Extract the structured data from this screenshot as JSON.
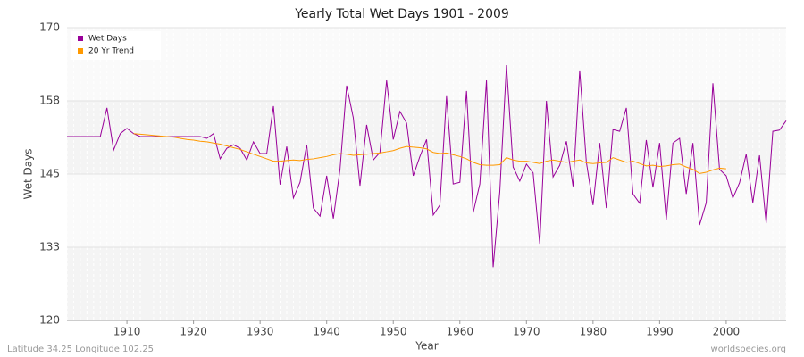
{
  "chart_data": {
    "type": "line",
    "title": "Yearly Total Wet Days 1901 - 2009",
    "x_label": "Year",
    "y_label": "Wet Days",
    "footer_left": "Latitude 34.25 Longitude 102.25",
    "footer_right": "worldspecies.org",
    "x": [
      1901,
      1902,
      1903,
      1904,
      1905,
      1906,
      1907,
      1908,
      1909,
      1910,
      1911,
      1912,
      1913,
      1914,
      1915,
      1916,
      1917,
      1918,
      1919,
      1920,
      1921,
      1922,
      1923,
      1924,
      1925,
      1926,
      1927,
      1928,
      1929,
      1930,
      1931,
      1932,
      1933,
      1934,
      1935,
      1936,
      1937,
      1938,
      1939,
      1940,
      1941,
      1942,
      1943,
      1944,
      1945,
      1946,
      1947,
      1948,
      1949,
      1950,
      1951,
      1952,
      1953,
      1954,
      1955,
      1956,
      1957,
      1958,
      1959,
      1960,
      1961,
      1962,
      1963,
      1964,
      1965,
      1966,
      1967,
      1968,
      1969,
      1970,
      1971,
      1972,
      1973,
      1974,
      1975,
      1976,
      1977,
      1978,
      1979,
      1980,
      1981,
      1982,
      1983,
      1984,
      1985,
      1986,
      1987,
      1988,
      1989,
      1990,
      1991,
      1992,
      1993,
      1994,
      1995,
      1996,
      1997,
      1998,
      1999,
      2000,
      2001,
      2002,
      2003,
      2004,
      2005,
      2006,
      2007,
      2008,
      2009
    ],
    "series": [
      {
        "name": "Wet Days",
        "color": "#990099",
        "values": [
          151.4,
          151.4,
          151.4,
          151.4,
          151.4,
          151.4,
          156.3,
          149.1,
          151.9,
          152.8,
          151.9,
          151.4,
          151.4,
          151.4,
          151.4,
          151.4,
          151.4,
          151.4,
          151.4,
          151.4,
          151.4,
          151.1,
          151.9,
          147.6,
          149.4,
          150.0,
          149.4,
          147.4,
          150.5,
          148.5,
          148.5,
          156.6,
          143.2,
          149.7,
          140.9,
          143.6,
          150.0,
          139.2,
          137.8,
          144.7,
          137.4,
          145.8,
          160.1,
          154.6,
          143.0,
          153.4,
          147.4,
          148.7,
          161.0,
          150.9,
          155.7,
          153.7,
          144.7,
          148.0,
          150.9,
          138.0,
          139.7,
          158.3,
          143.3,
          143.6,
          159.2,
          138.4,
          143.3,
          161.0,
          129.1,
          142.0,
          163.6,
          146.2,
          143.8,
          146.7,
          145.2,
          133.1,
          157.5,
          144.5,
          146.5,
          150.6,
          142.9,
          162.7,
          147.0,
          139.7,
          150.3,
          139.2,
          152.6,
          152.3,
          156.3,
          141.6,
          140.0,
          150.8,
          142.7,
          150.3,
          137.2,
          150.3,
          151.1,
          141.6,
          150.3,
          136.3,
          140.1,
          160.5,
          145.8,
          144.7,
          140.9,
          143.5,
          148.4,
          140.1,
          148.2,
          136.6,
          152.3,
          152.5,
          154.1
        ]
      },
      {
        "name": "20 Yr Trend",
        "color": "#ff9900",
        "values": [
          null,
          null,
          null,
          null,
          null,
          null,
          null,
          null,
          null,
          null,
          151.9,
          151.8,
          151.7,
          151.6,
          151.5,
          151.4,
          151.3,
          151.1,
          150.9,
          150.8,
          150.6,
          150.5,
          150.3,
          150.1,
          149.8,
          149.5,
          149.2,
          148.8,
          148.4,
          148.0,
          147.6,
          147.2,
          147.2,
          147.3,
          147.4,
          147.3,
          147.5,
          147.6,
          147.8,
          148.0,
          148.3,
          148.5,
          148.4,
          148.2,
          148.3,
          148.4,
          148.5,
          148.6,
          148.8,
          149.0,
          149.4,
          149.7,
          149.6,
          149.5,
          149.3,
          148.7,
          148.5,
          148.6,
          148.3,
          148.0,
          147.6,
          147.0,
          146.6,
          146.5,
          146.5,
          146.6,
          147.8,
          147.4,
          147.2,
          147.2,
          147.0,
          146.8,
          147.2,
          147.4,
          147.2,
          147.0,
          147.2,
          147.4,
          146.9,
          146.8,
          146.9,
          147.0,
          147.8,
          147.4,
          147.0,
          147.2,
          146.8,
          146.4,
          146.5,
          146.3,
          146.4,
          146.6,
          146.7,
          146.2,
          145.8,
          145.1,
          145.3,
          145.7,
          146.0,
          145.9,
          null,
          null,
          null,
          null,
          null,
          null,
          null,
          null,
          null
        ]
      }
    ],
    "xlim": [
      1901,
      2009
    ],
    "xticks": [
      1910,
      1920,
      1930,
      1940,
      1950,
      1960,
      1970,
      1980,
      1990,
      2000
    ],
    "ylim": [
      120,
      170
    ],
    "yticks": [
      120,
      {
        "value": 132.5,
        "label": "133"
      },
      145,
      {
        "value": 157.5,
        "label": "158"
      },
      170
    ],
    "grid": true,
    "legend": "top-left"
  }
}
